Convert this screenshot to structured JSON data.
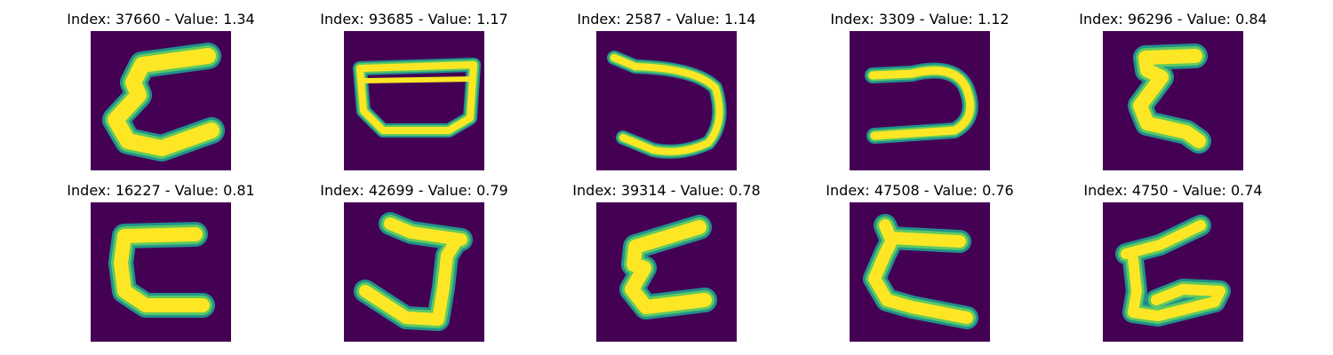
{
  "figure": {
    "colormap": {
      "background": "#440154",
      "edge_mid": "#21918c",
      "edge_light": "#5ec962",
      "stroke": "#fde725"
    },
    "panels": [
      {
        "title": "Index: 37660 - Value: 1.34",
        "glyph": "c-shape"
      },
      {
        "title": "Index: 93685 - Value: 1.17",
        "glyph": "bowl-shape"
      },
      {
        "title": "Index: 2587 - Value: 1.14",
        "glyph": "reversed-c-shape"
      },
      {
        "title": "Index: 3309 - Value: 1.12",
        "glyph": "reversed-c-shape"
      },
      {
        "title": "Index: 96296 - Value: 0.84",
        "glyph": "c-shape"
      },
      {
        "title": "Index: 16227 - Value: 0.81",
        "glyph": "c-shape"
      },
      {
        "title": "Index: 42699 - Value: 0.79",
        "glyph": "j-shape"
      },
      {
        "title": "Index: 39314 - Value: 0.78",
        "glyph": "c-shape"
      },
      {
        "title": "Index: 47508 - Value: 0.76",
        "glyph": "c-shape"
      },
      {
        "title": "Index: 4750 - Value: 0.74",
        "glyph": "c-shape"
      }
    ]
  }
}
